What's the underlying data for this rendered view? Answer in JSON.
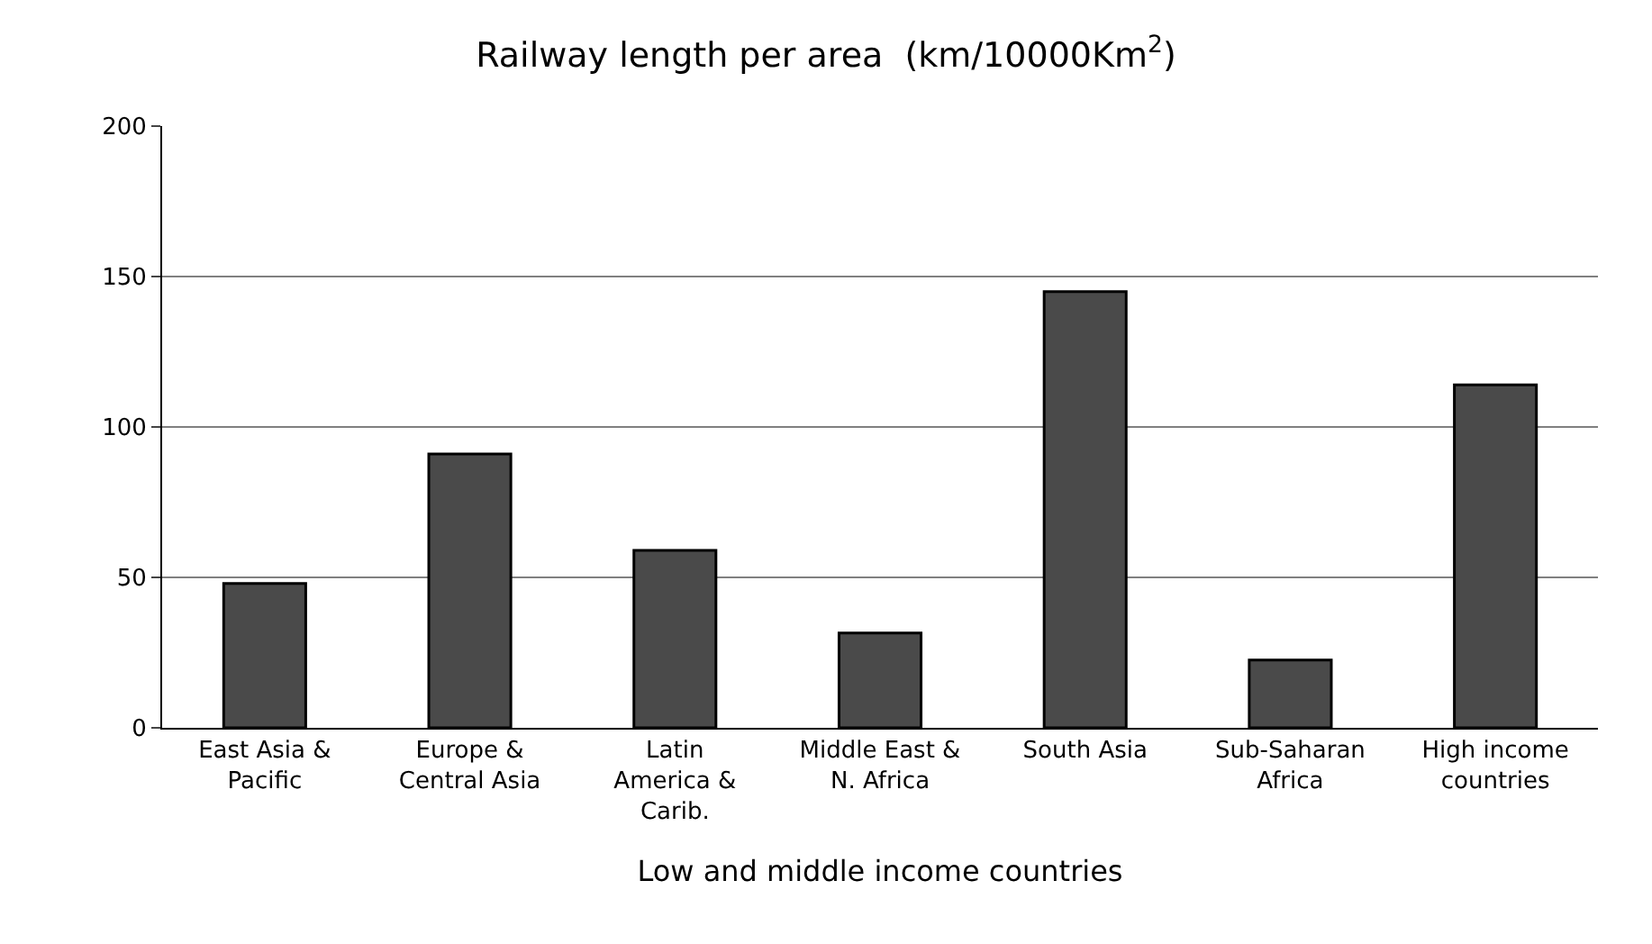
{
  "chart_data": {
    "type": "bar",
    "title": "Railway length per area  (km/10000Km$^{2}$)",
    "categories": [
      "East Asia &\nPacific",
      "Europe &\nCentral Asia",
      "Latin\nAmerica &\nCarib.",
      "Middle East &\nN. Africa",
      "South Asia",
      "Sub-Saharan\nAfrica",
      "High income\ncountries"
    ],
    "values": [
      48,
      91,
      59,
      31.5,
      145,
      22.5,
      114
    ],
    "color": "#4a4a4a",
    "xlabel": "Low and middle income countries",
    "ylim": [
      0,
      200
    ],
    "yticks": [
      0,
      50,
      100,
      150,
      200
    ],
    "grid": "y"
  }
}
